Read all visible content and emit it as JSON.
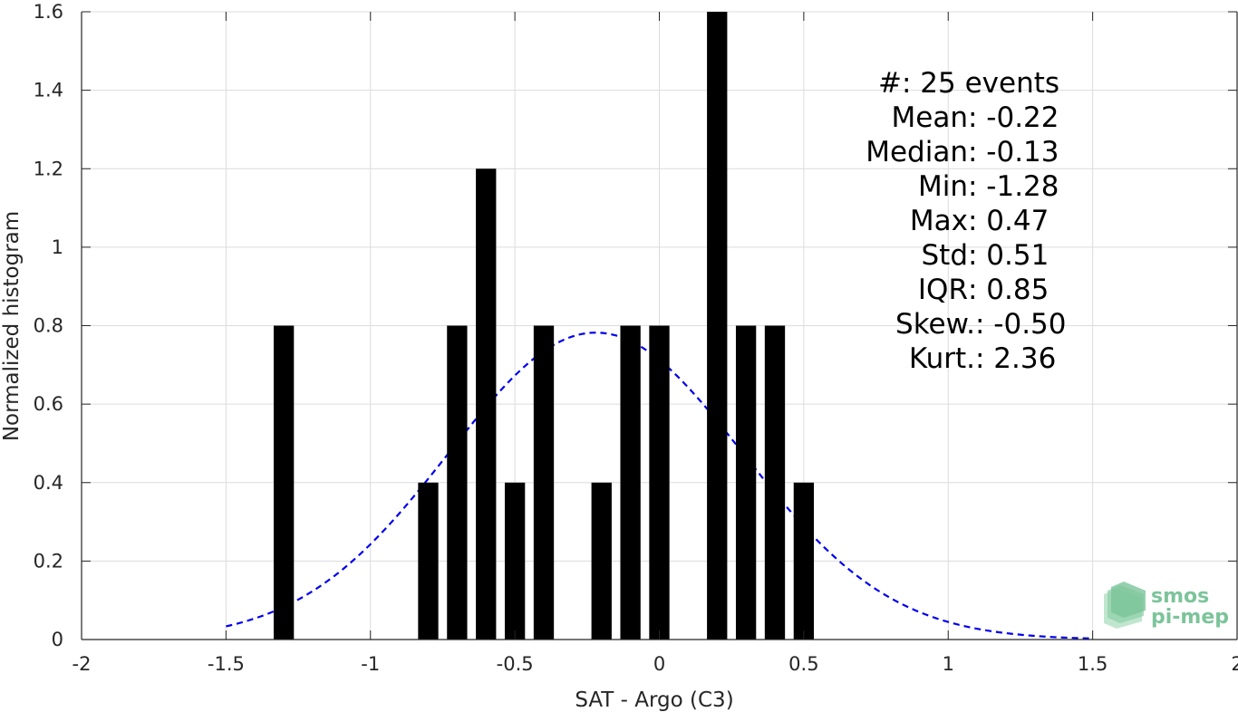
{
  "chart_data": {
    "type": "bar",
    "xlabel": "SAT - Argo (C3)",
    "ylabel": "Normalized histogram",
    "xlim": [
      -2,
      2
    ],
    "ylim": [
      0,
      1.6
    ],
    "xticks": [
      -2,
      -1.5,
      -1,
      -0.5,
      0,
      0.5,
      1,
      1.5,
      2
    ],
    "xtick_labels": [
      "-2",
      "-1.5",
      "-1",
      "-0.5",
      "0",
      "0.5",
      "1",
      "1.5",
      "2"
    ],
    "yticks": [
      0,
      0.2,
      0.4,
      0.6,
      0.8,
      1,
      1.2,
      1.4,
      1.6
    ],
    "ytick_labels": [
      "0",
      "0.2",
      "0.4",
      "0.6",
      "0.8",
      "1",
      "1.2",
      "1.4",
      "1.6"
    ],
    "grid": true,
    "bar_width": 0.07,
    "bar_color": "#000000",
    "bars": [
      {
        "x": -1.3,
        "value": 0.8
      },
      {
        "x": -0.8,
        "value": 0.4
      },
      {
        "x": -0.7,
        "value": 0.8
      },
      {
        "x": -0.6,
        "value": 1.2
      },
      {
        "x": -0.5,
        "value": 0.4
      },
      {
        "x": -0.4,
        "value": 0.8
      },
      {
        "x": -0.2,
        "value": 0.4
      },
      {
        "x": -0.1,
        "value": 0.8
      },
      {
        "x": 0.0,
        "value": 0.8
      },
      {
        "x": 0.2,
        "value": 1.6
      },
      {
        "x": 0.3,
        "value": 0.8
      },
      {
        "x": 0.4,
        "value": 0.8
      },
      {
        "x": 0.5,
        "value": 0.4
      }
    ],
    "fit_curve": {
      "style": "dashed",
      "color": "#0000ee",
      "mean": -0.22,
      "std": 0.51,
      "x_range": [
        -1.5,
        1.5
      ]
    },
    "stats": [
      {
        "label": "#  ",
        "value": ": 25 events"
      },
      {
        "label": "Mean ",
        "value": ": -0.22"
      },
      {
        "label": "Median ",
        "value": ": -0.13"
      },
      {
        "label": "Min ",
        "value": ": -1.28"
      },
      {
        "label": "Max ",
        "value": ": 0.47"
      },
      {
        "label": "Std ",
        "value": ": 0.51"
      },
      {
        "label": "IQR ",
        "value": ": 0.85"
      },
      {
        "label": "Skew. ",
        "value": ": -0.50"
      },
      {
        "label": "Kurt. ",
        "value": ": 2.36"
      }
    ]
  },
  "logo": {
    "line1": "smos",
    "line2": "pi-mep",
    "color": "#7cc49a"
  }
}
